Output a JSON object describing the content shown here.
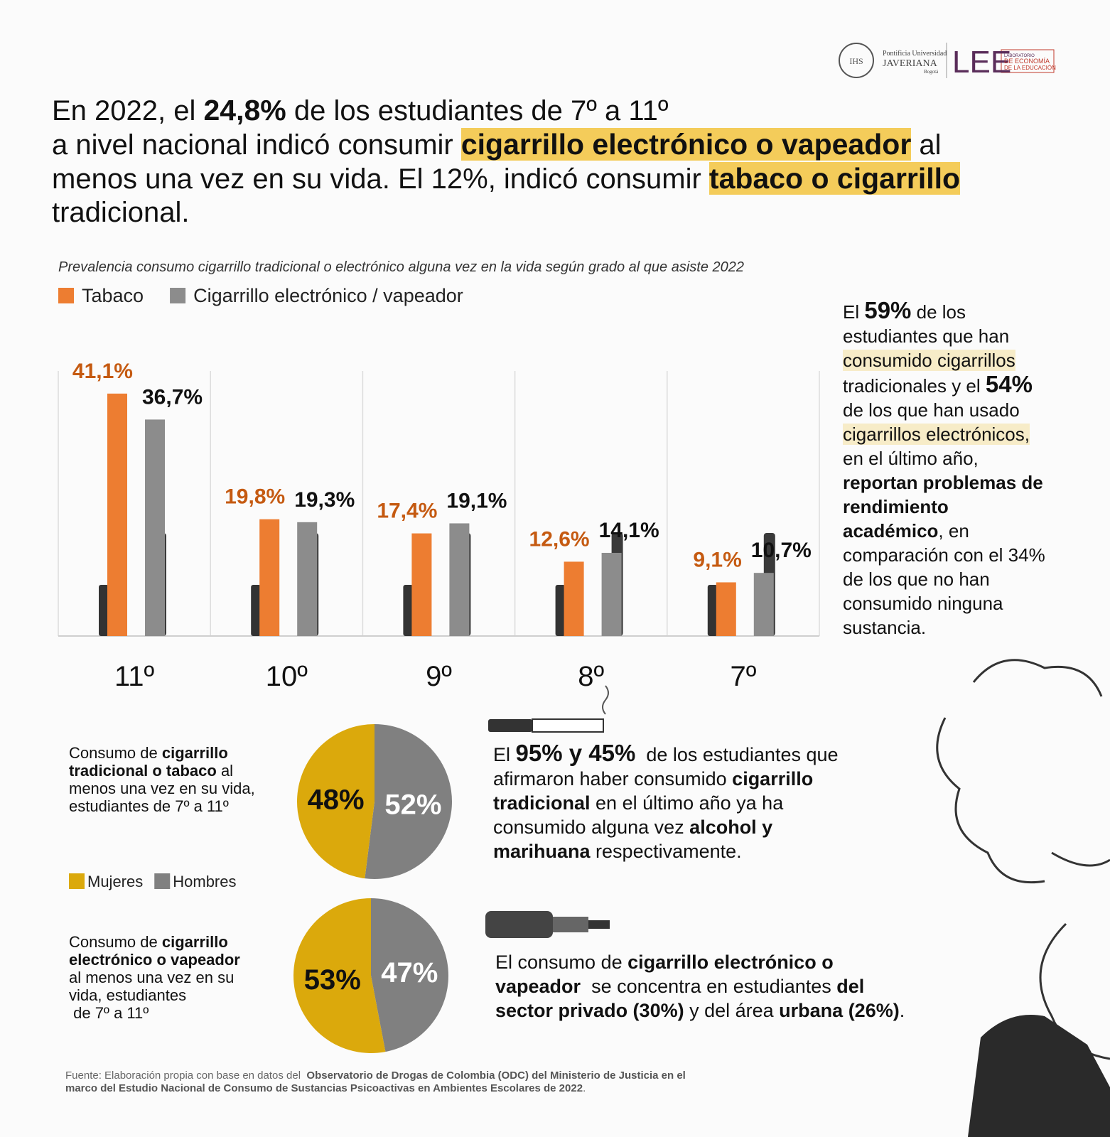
{
  "logo": {
    "university": [
      "Pontificia Universidad",
      "JAVERIANA",
      "Bogotá"
    ],
    "lab": [
      "LEE",
      "LABORATORIO",
      "DE ECONOMÍA",
      "DE LA EDUCACIÓN"
    ]
  },
  "headline": [
    [
      {
        "text": "En 2022, el "
      },
      {
        "text": "24,8%",
        "bold": true
      },
      {
        "text": " de los estudiantes de 7º a 11º"
      }
    ],
    [
      {
        "text": "a nivel nacional indicó consumir "
      },
      {
        "text": "cigarrillo electrónico o vapeador",
        "bold": true,
        "mark": "strong"
      },
      {
        "text": " al"
      }
    ],
    [
      {
        "text": "menos una vez en su vida. El 12%, indicó consumir "
      },
      {
        "text": "tabaco o cigarrillo",
        "bold": true,
        "mark": "strong"
      }
    ],
    [
      {
        "text": "tradicional."
      }
    ]
  ],
  "chart_data": [
    {
      "type": "bar",
      "title": "Prevalencia consumo cigarrillo tradicional o electrónico alguna vez en la vida según grado al que asiste 2022",
      "categories": [
        "11º",
        "10º",
        "9º",
        "8º",
        "7º"
      ],
      "series": [
        {
          "name": "Tabaco",
          "color": "#ed7d31",
          "label_color": "#c55a11",
          "values": [
            41.1,
            19.8,
            17.4,
            12.6,
            9.1
          ],
          "value_labels": [
            "41,1%",
            "19,8%",
            "17,4%",
            "12,6%",
            "9,1%"
          ]
        },
        {
          "name": "Cigarrillo electrónico / vapeador",
          "color": "#8c8c8c",
          "label_color": "#111111",
          "values": [
            36.7,
            19.3,
            19.1,
            14.1,
            10.7
          ],
          "value_labels": [
            "36,7%",
            "19,3%",
            "19,1%",
            "14,1%",
            "10,7%"
          ]
        }
      ]
    },
    {
      "type": "pie",
      "categories": [
        "Mujeres",
        "Hombres"
      ],
      "values": [
        48,
        52
      ],
      "value_labels": [
        "48%",
        "52%"
      ],
      "colors": [
        "#dba90c",
        "#808080"
      ],
      "label_colors": [
        "#111111",
        "#ffffff"
      ],
      "caption": [
        [
          {
            "text": "Consumo de "
          },
          {
            "text": "cigarrillo",
            "bold": true
          }
        ],
        [
          {
            "text": "tradicional o tabaco",
            "bold": true
          },
          {
            "text": " al"
          }
        ],
        [
          {
            "text": "menos una vez en su vida,"
          }
        ],
        [
          {
            "text": "estudiantes de 7º a 11º"
          }
        ]
      ]
    },
    {
      "type": "pie",
      "values": [
        53,
        47
      ],
      "value_labels": [
        "53%",
        "47%"
      ],
      "colors": [
        "#dba90c",
        "#808080"
      ],
      "label_colors": [
        "#111111",
        "#ffffff"
      ],
      "caption": [
        [
          {
            "text": "Consumo de "
          },
          {
            "text": "cigarrillo",
            "bold": true
          }
        ],
        [
          {
            "text": "electrónico o vapeador",
            "bold": true
          }
        ],
        [
          {
            "text": "al menos una vez en su"
          }
        ],
        [
          {
            "text": "vida, estudiantes"
          }
        ],
        [
          {
            "text": " de 7º a 11º"
          }
        ]
      ]
    }
  ],
  "side_note": [
    [
      {
        "text": "El "
      },
      {
        "text": "59%",
        "bold": true,
        "big": true
      },
      {
        "text": " de los"
      }
    ],
    [
      {
        "text": "estudiantes que han"
      }
    ],
    [
      {
        "text": "consumido cigarrillos",
        "mark": "soft"
      }
    ],
    [
      {
        "text": "tradicionales y el "
      },
      {
        "text": "54%",
        "bold": true,
        "big": true
      }
    ],
    [
      {
        "text": "de los que han usado"
      }
    ],
    [
      {
        "text": "cigarrillos electrónicos,",
        "mark": "soft"
      }
    ],
    [
      {
        "text": "en el último año,"
      }
    ],
    [
      {
        "text": "reportan problemas de",
        "bold": true
      }
    ],
    [
      {
        "text": "rendimiento",
        "bold": true
      }
    ],
    [
      {
        "text": "académico",
        "bold": true
      },
      {
        "text": ", en"
      }
    ],
    [
      {
        "text": "comparación con el 34%"
      }
    ],
    [
      {
        "text": "de los que no han"
      }
    ],
    [
      {
        "text": "consumido ninguna"
      }
    ],
    [
      {
        "text": "sustancia."
      }
    ]
  ],
  "note_alcohol": [
    [
      {
        "text": "El "
      },
      {
        "text": "95% y 45%",
        "bold": true,
        "big": true
      },
      {
        "text": "  de los estudiantes que"
      }
    ],
    [
      {
        "text": "afirmaron haber consumido "
      },
      {
        "text": "cigarrillo",
        "bold": true
      }
    ],
    [
      {
        "text": "tradicional",
        "bold": true
      },
      {
        "text": " en el último año ya ha"
      }
    ],
    [
      {
        "text": "consumido alguna vez "
      },
      {
        "text": "alcohol y",
        "bold": true
      }
    ],
    [
      {
        "text": "marihuana",
        "bold": true
      },
      {
        "text": " respectivamente."
      }
    ]
  ],
  "note_vape": [
    [
      {
        "text": "El consumo de "
      },
      {
        "text": "cigarrillo electrónico o",
        "bold": true
      }
    ],
    [
      {
        "text": "vapeador",
        "bold": true
      },
      {
        "text": "  se concentra en estudiantes "
      },
      {
        "text": "del",
        "bold": true
      }
    ],
    [
      {
        "text": "sector privado (30%)",
        "bold": true
      },
      {
        "text": " y del área "
      },
      {
        "text": "urbana (26%)",
        "bold": true
      },
      {
        "text": "."
      }
    ]
  ],
  "source": [
    [
      {
        "text": "Fuente: Elaboración propia con base en datos del  "
      },
      {
        "text": "Observatorio de Drogas de Colombia (ODC) del Ministerio de Justicia en el",
        "bold": true
      }
    ],
    [
      {
        "text": "marco del Estudio Nacional de Consumo de Sustancias Psicoactivas en Ambientes Escolares de 2022",
        "bold": true
      },
      {
        "text": "."
      }
    ]
  ]
}
